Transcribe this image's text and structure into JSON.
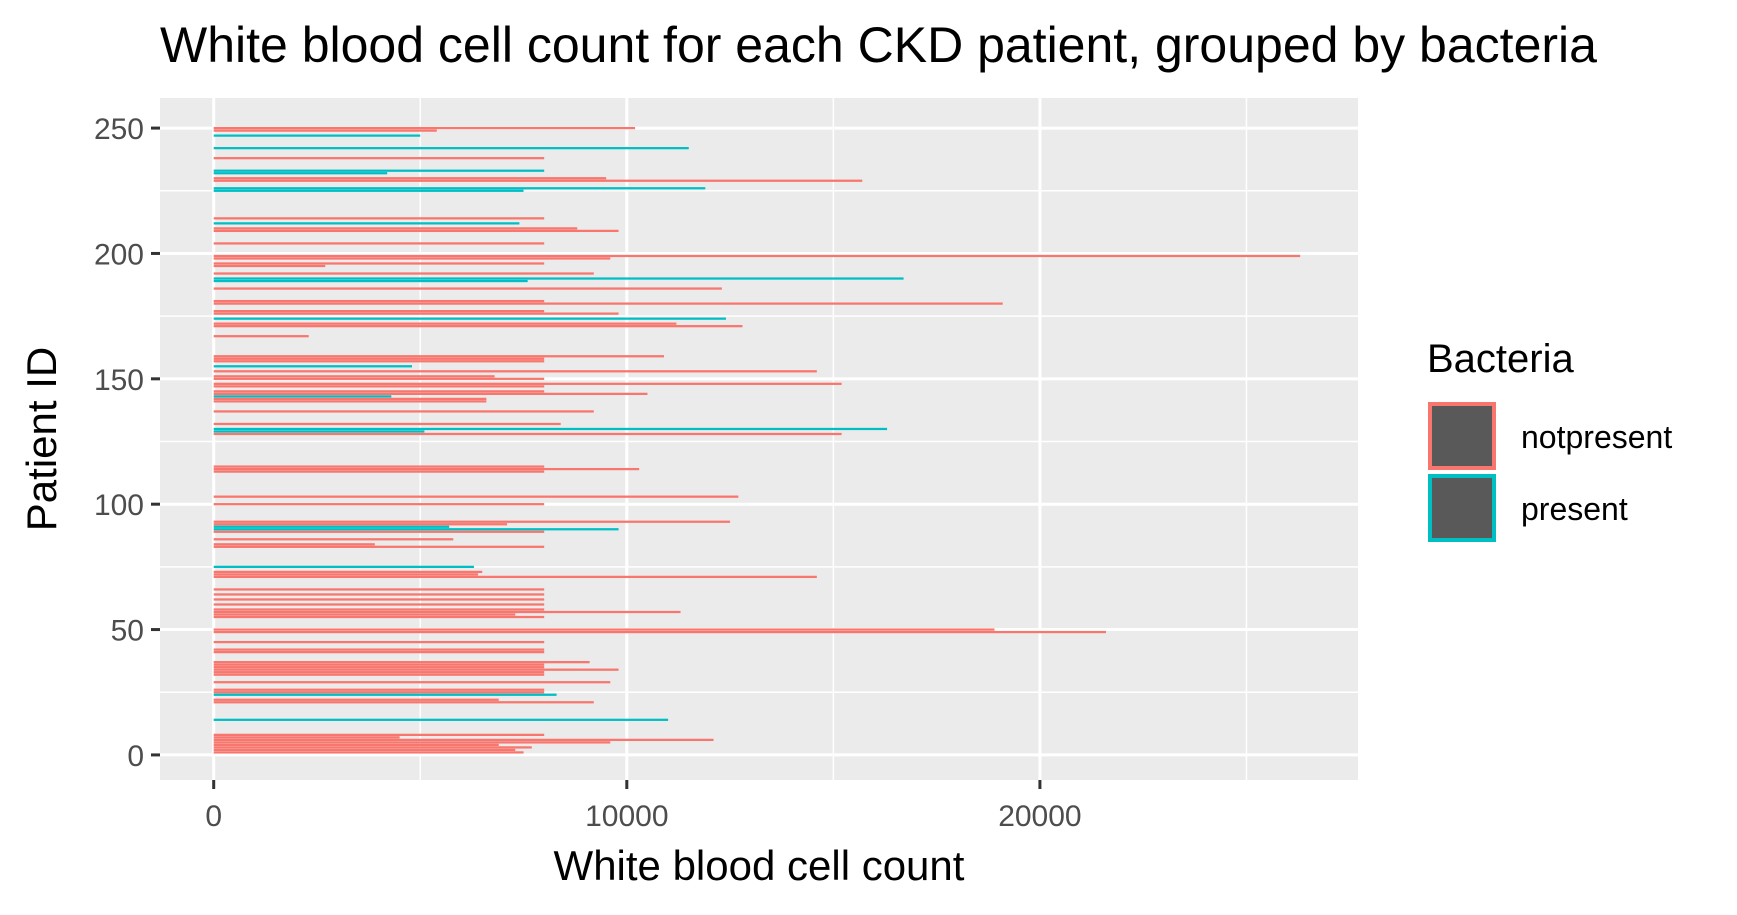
{
  "chart_data": {
    "type": "bar",
    "orientation": "horizontal",
    "title": "White blood cell count for each CKD patient, grouped by bacteria",
    "xlabel": "White blood cell count",
    "ylabel": "Patient ID",
    "xlim": [
      -1300,
      27700
    ],
    "ylim": [
      -10,
      262
    ],
    "x_ticks": [
      0,
      10000,
      20000
    ],
    "x_tick_labels": [
      "0",
      "10000",
      "20000"
    ],
    "y_ticks": [
      0,
      50,
      100,
      150,
      200,
      250
    ],
    "y_tick_labels": [
      "0",
      "50",
      "100",
      "150",
      "200",
      "250"
    ],
    "grid": true,
    "legend": {
      "title": "Bacteria",
      "position": "right",
      "entries": [
        {
          "label": "notpresent",
          "color": "#F8766D"
        },
        {
          "label": "present",
          "color": "#00BFC4"
        }
      ]
    },
    "series": [
      {
        "name": "notpresent",
        "color": "#F8766D",
        "points": [
          [
            1,
            7500
          ],
          [
            2,
            7300
          ],
          [
            3,
            7700
          ],
          [
            4,
            6900
          ],
          [
            5,
            9600
          ],
          [
            6,
            12100
          ],
          [
            7,
            4500
          ],
          [
            8,
            8000
          ],
          [
            21,
            9200
          ],
          [
            22,
            6900
          ],
          [
            25,
            8000
          ],
          [
            26,
            8000
          ],
          [
            29,
            9600
          ],
          [
            32,
            8000
          ],
          [
            33,
            8000
          ],
          [
            34,
            9800
          ],
          [
            35,
            8000
          ],
          [
            36,
            8000
          ],
          [
            37,
            9100
          ],
          [
            41,
            8000
          ],
          [
            42,
            8000
          ],
          [
            45,
            8000
          ],
          [
            49,
            21600
          ],
          [
            50,
            18900
          ],
          [
            55,
            8000
          ],
          [
            56,
            7300
          ],
          [
            57,
            11300
          ],
          [
            58,
            8000
          ],
          [
            60,
            8000
          ],
          [
            62,
            8000
          ],
          [
            64,
            8000
          ],
          [
            66,
            8000
          ],
          [
            71,
            14600
          ],
          [
            72,
            6400
          ],
          [
            73,
            6500
          ],
          [
            83,
            8000
          ],
          [
            84,
            3900
          ],
          [
            86,
            5800
          ],
          [
            89,
            8000
          ],
          [
            92,
            7100
          ],
          [
            93,
            12500
          ],
          [
            100,
            8000
          ],
          [
            103,
            12700
          ],
          [
            113,
            8000
          ],
          [
            114,
            10300
          ],
          [
            115,
            8000
          ],
          [
            128,
            15200
          ],
          [
            132,
            8400
          ],
          [
            137,
            9200
          ],
          [
            141,
            6600
          ],
          [
            142,
            6600
          ],
          [
            144,
            10500
          ],
          [
            145,
            8000
          ],
          [
            147,
            8000
          ],
          [
            148,
            15200
          ],
          [
            150,
            8000
          ],
          [
            151,
            6800
          ],
          [
            153,
            14600
          ],
          [
            157,
            8000
          ],
          [
            158,
            8000
          ],
          [
            159,
            10900
          ],
          [
            167,
            2300
          ],
          [
            171,
            12800
          ],
          [
            172,
            11200
          ],
          [
            176,
            9800
          ],
          [
            177,
            8000
          ],
          [
            180,
            19100
          ],
          [
            181,
            8000
          ],
          [
            186,
            12300
          ],
          [
            192,
            9200
          ],
          [
            195,
            2700
          ],
          [
            196,
            8000
          ],
          [
            198,
            9600
          ],
          [
            199,
            26300
          ],
          [
            204,
            8000
          ],
          [
            209,
            9800
          ],
          [
            210,
            8800
          ],
          [
            214,
            8000
          ],
          [
            229,
            15700
          ],
          [
            230,
            9500
          ],
          [
            238,
            8000
          ],
          [
            249,
            5400
          ],
          [
            250,
            10200
          ]
        ]
      },
      {
        "name": "present",
        "color": "#00BFC4",
        "points": [
          [
            14,
            11000
          ],
          [
            24,
            8300
          ],
          [
            75,
            6300
          ],
          [
            90,
            9800
          ],
          [
            91,
            5700
          ],
          [
            129,
            5100
          ],
          [
            130,
            16300
          ],
          [
            143,
            4300
          ],
          [
            155,
            4800
          ],
          [
            174,
            12400
          ],
          [
            189,
            7600
          ],
          [
            190,
            16700
          ],
          [
            212,
            7400
          ],
          [
            225,
            7500
          ],
          [
            226,
            11900
          ],
          [
            232,
            4200
          ],
          [
            233,
            8000
          ],
          [
            242,
            11500
          ],
          [
            247,
            5000
          ]
        ]
      }
    ]
  }
}
